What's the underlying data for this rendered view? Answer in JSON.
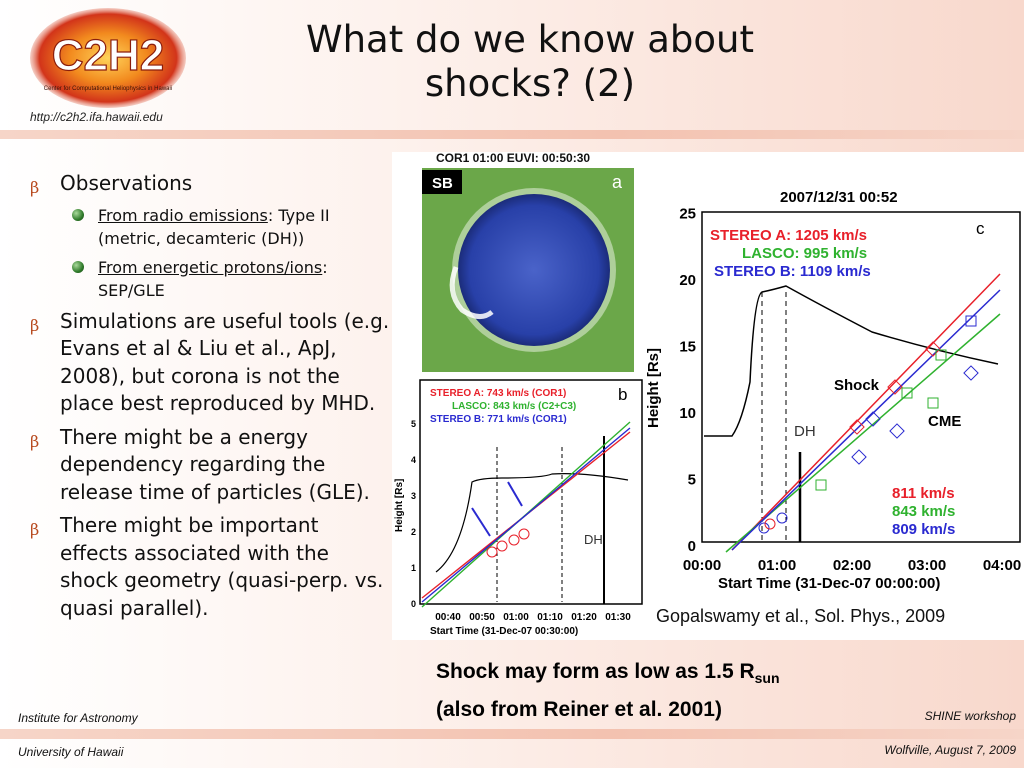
{
  "logo": {
    "main": "C2H2",
    "sub": "Center for Computational Heliophysics in Hawaii"
  },
  "header": {
    "url": "http://c2h2.ifa.hawaii.edu",
    "title_line1": "What do we know about",
    "title_line2": "shocks? (2)"
  },
  "bullets": {
    "observations": "Observations",
    "radio_link": "From radio emissions",
    "radio_rest": ": Type II (metric, decamteric (DH))",
    "particle_link": "From energetic protons/ions",
    "particle_rest": ": SEP/GLE",
    "simulations": "Simulations are useful tools (e.g. Evans et al & Liu et al., ApJ, 2008), but corona is not the place best reproduced by MHD.",
    "energy": "There might be a energy dependency regarding the release time of particles (GLE).",
    "geometry": "There might be important effects associated with the shock geometry (quasi-perp. vs. quasi parallel)."
  },
  "figure": {
    "header_a": "COR1 01:00 EUVI: 00:50:30",
    "sb": "SB",
    "label_a": "a",
    "label_b": "b",
    "label_c": "c",
    "b_legend": [
      "STEREO A: 743 km/s (COR1)",
      "LASCO: 843 km/s (C2+C3)",
      "STEREO B: 771 km/s (COR1)"
    ],
    "b_ylabel": "Height [Rs]",
    "b_xlabel": "Start Time (31-Dec-07 00:30:00)",
    "b_yticks": [
      "0",
      "1",
      "2",
      "3",
      "4",
      "5"
    ],
    "b_xticks": [
      "00:40",
      "00:50",
      "01:00",
      "01:10",
      "01:20",
      "01:30"
    ],
    "b_dh": "DH",
    "c_title": "2007/12/31 00:52",
    "c_legend": [
      "STEREO A: 1205 km/s",
      "LASCO: 995 km/s",
      "STEREO B: 1109 km/s"
    ],
    "c_ylabel": "Height [Rs]",
    "c_xlabel": "Start Time (31-Dec-07 00:00:00)",
    "c_yticks": [
      "0",
      "5",
      "10",
      "15",
      "20",
      "25"
    ],
    "c_xticks": [
      "00:00",
      "01:00",
      "02:00",
      "03:00",
      "04:00"
    ],
    "c_shock": "Shock",
    "c_cme": "CME",
    "c_dh": "DH",
    "c_speeds": [
      "811 km/s",
      "843 km/s",
      "809 km/s"
    ],
    "colors": {
      "red": "#e8202a",
      "green": "#2fb22f",
      "blue": "#2a2ad0"
    },
    "caption": "Gopalswamy et al., Sol. Phys., 2009"
  },
  "shock_note": {
    "line1_pre": "Shock may form as low as 1.5 R",
    "line1_sub": "sun",
    "line2": "(also from Reiner et al. 2001)"
  },
  "footer": {
    "left1": "Institute for Astronomy",
    "right1": "SHINE workshop",
    "left2": "University of Hawaii",
    "right2": "Wolfville, August 7, 2009"
  }
}
